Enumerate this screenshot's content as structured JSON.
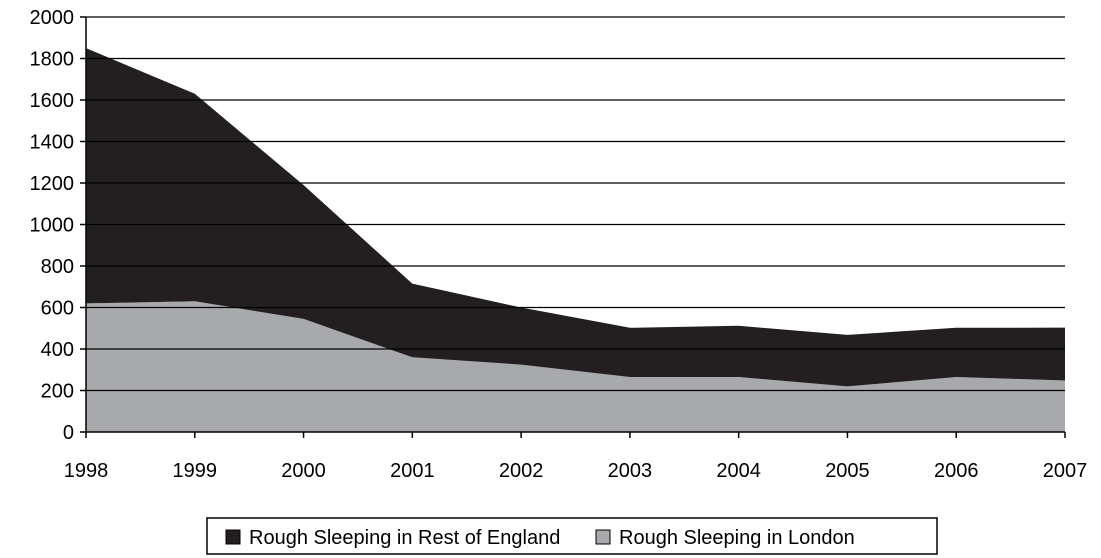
{
  "chart_data": {
    "type": "area",
    "stacked": true,
    "title": "",
    "xlabel": "",
    "ylabel": "",
    "x": [
      "1998",
      "1999",
      "2000",
      "2001",
      "2002",
      "2003",
      "2004",
      "2005",
      "2006",
      "2007"
    ],
    "series": [
      {
        "name": "Rough Sleeping in London",
        "values": [
          620,
          630,
          545,
          360,
          325,
          265,
          265,
          220,
          265,
          248
        ],
        "color": "#a7a9ac"
      },
      {
        "name": "Rough Sleeping in Rest of England",
        "values": [
          1230,
          1000,
          645,
          355,
          275,
          237,
          247,
          248,
          237,
          255
        ],
        "color": "#231f20"
      }
    ],
    "ylim": [
      0,
      2000
    ],
    "yticks": [
      "0",
      "200",
      "400",
      "600",
      "800",
      "1000",
      "1200",
      "1400",
      "1600",
      "1800",
      "2000"
    ],
    "grid": true,
    "legend_position": "bottom",
    "legend": [
      "Rough Sleeping in Rest of England",
      "Rough Sleeping in London"
    ]
  }
}
